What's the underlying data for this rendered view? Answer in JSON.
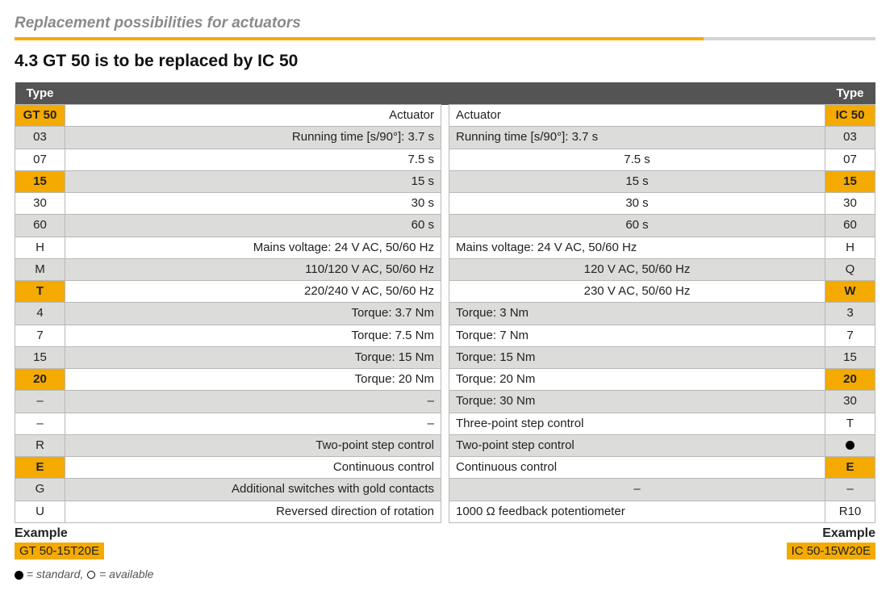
{
  "page_subtitle": "Replacement possibilities for actuators",
  "section_heading": "4.3 GT 50 is to be replaced by IC 50",
  "colors": {
    "accent": "#f4aa00",
    "header_bg": "#545454",
    "band_grey": "#dcdcda",
    "border": "#b8b8b6"
  },
  "table": {
    "left_header": "Type",
    "right_header": "Type",
    "rows": [
      {
        "band": "white",
        "code_l": "GT 50",
        "hl_l": true,
        "desc_l": "Actuator",
        "desc_r": "Actuator",
        "code_r": "IC 50",
        "hl_r": true
      },
      {
        "band": "grey",
        "code_l": "03",
        "desc_l": "Running time [s/90°]: 3.7 s",
        "desc_r": "Running time [s/90°]: 3.7 s",
        "code_r": "03"
      },
      {
        "band": "white",
        "code_l": "07",
        "desc_l": "7.5 s",
        "desc_r": "7.5 s",
        "desc_r_center": true,
        "code_r": "07"
      },
      {
        "band": "grey",
        "code_l": "15",
        "hl_l": true,
        "desc_l": "15 s",
        "desc_r": "15 s",
        "desc_r_center": true,
        "code_r": "15",
        "hl_r": true
      },
      {
        "band": "white",
        "code_l": "30",
        "desc_l": "30 s",
        "desc_r": "30 s",
        "desc_r_center": true,
        "code_r": "30"
      },
      {
        "band": "grey",
        "code_l": "60",
        "desc_l": "60 s",
        "desc_r": "60 s",
        "desc_r_center": true,
        "code_r": "60"
      },
      {
        "band": "white",
        "code_l": "H",
        "desc_l": "Mains voltage: 24 V AC, 50/60 Hz",
        "desc_r": "Mains voltage:  24 V AC, 50/60 Hz",
        "code_r": "H"
      },
      {
        "band": "grey",
        "code_l": "M",
        "desc_l": "110/120 V AC, 50/60 Hz",
        "desc_r": "120 V AC, 50/60 Hz",
        "desc_r_center": true,
        "code_r": "Q"
      },
      {
        "band": "white",
        "code_l": "T",
        "hl_l": true,
        "desc_l": "220/240 V AC, 50/60 Hz",
        "desc_r": "230 V AC, 50/60 Hz",
        "desc_r_center": true,
        "code_r": "W",
        "hl_r": true
      },
      {
        "band": "grey",
        "code_l": "4",
        "desc_l": "Torque: 3.7 Nm",
        "desc_r": "Torque: 3 Nm",
        "code_r": "3"
      },
      {
        "band": "white",
        "code_l": "7",
        "desc_l": "Torque: 7.5 Nm",
        "desc_r": "Torque: 7 Nm",
        "code_r": "7"
      },
      {
        "band": "grey",
        "code_l": "15",
        "desc_l": "Torque: 15 Nm",
        "desc_r": "Torque: 15 Nm",
        "code_r": "15"
      },
      {
        "band": "white",
        "code_l": "20",
        "hl_l": true,
        "desc_l": "Torque: 20 Nm",
        "desc_r": "Torque: 20 Nm",
        "code_r": "20",
        "hl_r": true
      },
      {
        "band": "grey",
        "code_l": "–",
        "desc_l": "–",
        "desc_r": "Torque: 30 Nm",
        "code_r": "30"
      },
      {
        "band": "white",
        "code_l": "–",
        "desc_l": "–",
        "desc_r": "Three-point step control",
        "code_r": "T"
      },
      {
        "band": "grey",
        "code_l": "R",
        "desc_l": "Two-point step control",
        "desc_r": "Two-point step control",
        "code_r": "●",
        "code_r_glyph": "filled-circle"
      },
      {
        "band": "white",
        "code_l": "E",
        "hl_l": true,
        "desc_l": "Continuous control",
        "desc_r": "Continuous control",
        "code_r": "E",
        "hl_r": true
      },
      {
        "band": "grey",
        "code_l": "G",
        "desc_l": "Additional switches with gold contacts",
        "desc_r": "–",
        "desc_r_center": true,
        "code_r": "–"
      },
      {
        "band": "white",
        "code_l": "U",
        "desc_l": "Reversed direction of rotation",
        "desc_r": "1000 Ω feedback potentiometer",
        "code_r": "R10"
      }
    ]
  },
  "example": {
    "label": "Example",
    "left_code": "GT 50-15T20E",
    "right_code": "IC 50-15W20E"
  },
  "legend": {
    "standard_text": " = standard, ",
    "available_text": " = available"
  }
}
